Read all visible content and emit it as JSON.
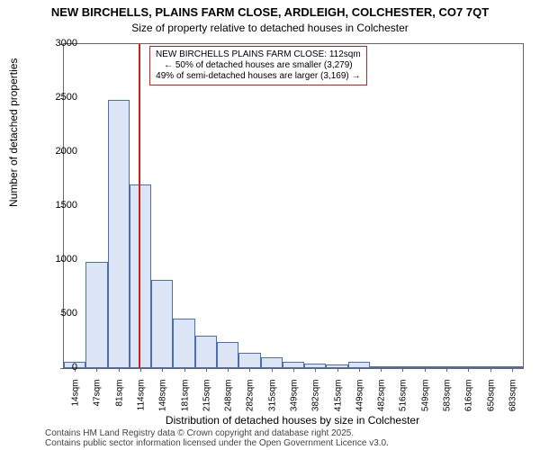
{
  "title_main": "NEW BIRCHELLS, PLAINS FARM CLOSE, ARDLEIGH, COLCHESTER, CO7 7QT",
  "title_sub": "Size of property relative to detached houses in Colchester",
  "y_axis_label": "Number of detached properties",
  "x_axis_label": "Distribution of detached houses by size in Colchester",
  "footer_line1": "Contains HM Land Registry data © Crown copyright and database right 2025.",
  "footer_line2": "Contains public sector information licensed under the Open Government Licence v3.0.",
  "chart": {
    "type": "histogram",
    "ylim": [
      0,
      3000
    ],
    "ytick_step": 500,
    "yticks": [
      0,
      500,
      1000,
      1500,
      2000,
      2500,
      3000
    ],
    "x_categories": [
      "14sqm",
      "47sqm",
      "81sqm",
      "114sqm",
      "148sqm",
      "181sqm",
      "215sqm",
      "248sqm",
      "282sqm",
      "315sqm",
      "349sqm",
      "382sqm",
      "415sqm",
      "449sqm",
      "482sqm",
      "516sqm",
      "549sqm",
      "583sqm",
      "616sqm",
      "650sqm",
      "683sqm"
    ],
    "values": [
      60,
      980,
      2480,
      1700,
      820,
      460,
      300,
      240,
      140,
      100,
      60,
      40,
      30,
      60,
      20,
      20,
      15,
      10,
      10,
      10,
      10
    ],
    "bar_fill": "#dbe5f6",
    "bar_border": "#4a6db5",
    "background_color": "#ffffff",
    "axis_color": "#666666",
    "marker_value_sqm": 112,
    "marker_color": "#cc1f1f",
    "annotation": {
      "line1": "NEW BIRCHELLS PLAINS FARM CLOSE: 112sqm",
      "line2": "← 50% of detached houses are smaller (3,279)",
      "line3": "49% of semi-detached houses are larger (3,169) →",
      "border_color": "#cc1f1f"
    }
  }
}
